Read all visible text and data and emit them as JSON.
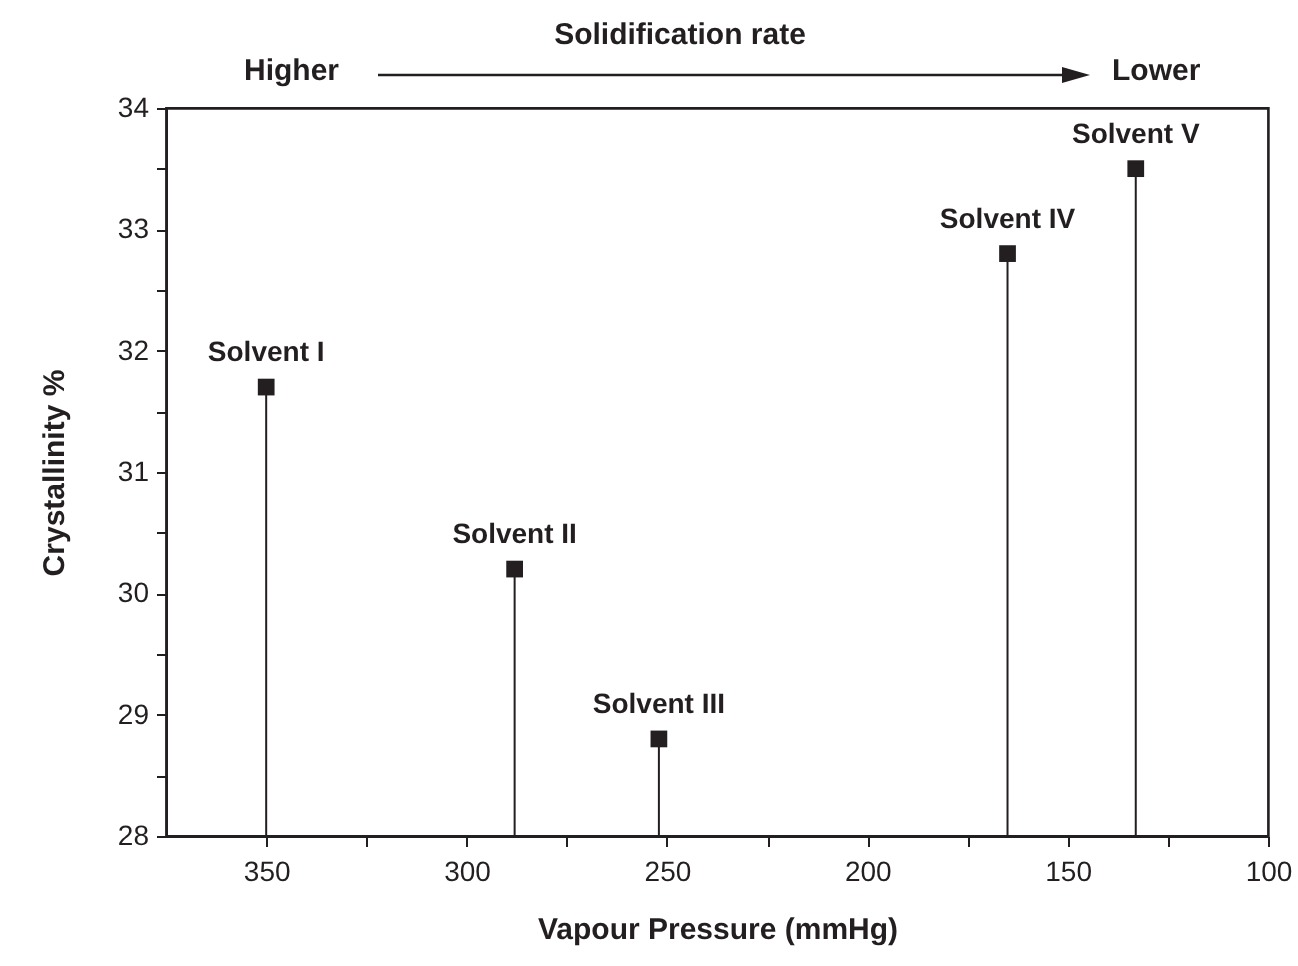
{
  "chart_data": {
    "type": "lollipop",
    "title": "Solidification rate",
    "xlabel": "Vapour Pressure (mmHg)",
    "ylabel": "Crystallinity %",
    "x": [
      350,
      288,
      252,
      165,
      133
    ],
    "series": [
      {
        "color": "#231f20",
        "values": [
          31.7,
          30.2,
          28.8,
          32.8,
          33.5
        ]
      }
    ],
    "marker": "square",
    "grid": false,
    "xlim": [
      375,
      100
    ],
    "xticks": [
      350,
      {
        "value": 325,
        "label": null
      },
      300,
      {
        "value": 275,
        "label": null
      },
      250,
      {
        "value": 225,
        "label": null
      },
      200,
      {
        "value": 175,
        "label": null
      },
      150,
      {
        "value": 125,
        "label": null
      },
      100
    ],
    "ylim": [
      28,
      34
    ],
    "yticks": [
      28,
      {
        "value": 28.5,
        "label": null
      },
      29,
      {
        "value": 29.5,
        "label": null
      },
      30,
      {
        "value": 30.5,
        "label": null
      },
      31,
      {
        "value": 31.5,
        "label": null
      },
      32,
      {
        "value": 32.5,
        "label": null
      },
      33,
      {
        "value": 33.5,
        "label": null
      },
      34
    ],
    "annotations": [
      {
        "text": "Solvent I",
        "x": 350,
        "y": 31.7
      },
      {
        "text": "Solvent II",
        "x": 288,
        "y": 30.2
      },
      {
        "text": "Solvent III",
        "x": 252,
        "y": 28.8
      },
      {
        "text": "Solvent IV",
        "x": 165,
        "y": 32.8
      },
      {
        "text": "Solvent V",
        "x": 133,
        "y": 33.5
      },
      "Higher",
      "Lower"
    ]
  }
}
